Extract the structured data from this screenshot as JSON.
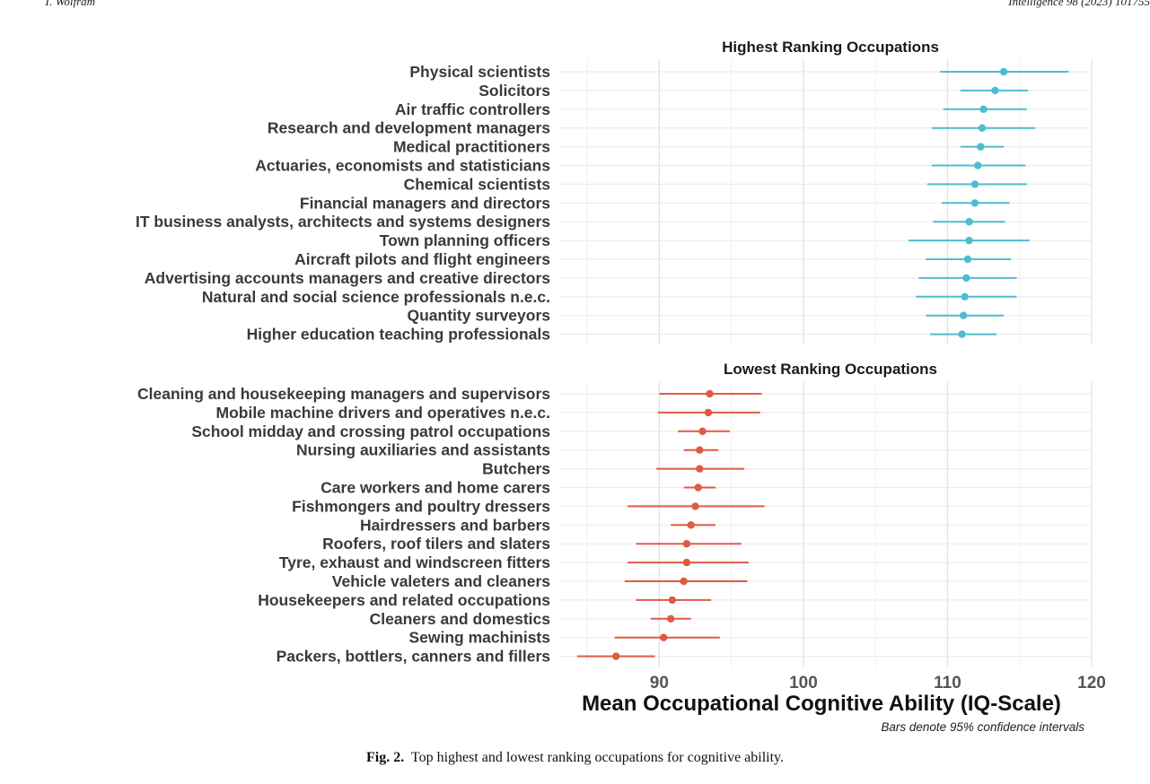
{
  "running_header": {
    "left": "T. Wolfram",
    "right": "Intelligence 98 (2023) 101755"
  },
  "chart_data": [
    {
      "type": "forest",
      "title": "Highest Ranking Occupations",
      "color": "#4EBCD0",
      "categories": [
        "Physical scientists",
        "Solicitors",
        "Air traffic controllers",
        "Research and development managers",
        "Medical practitioners",
        "Actuaries, economists and statisticians",
        "Chemical scientists",
        "Financial managers and directors",
        "IT business analysts, architects and systems designers",
        "Town planning officers",
        "Aircraft pilots and flight engineers",
        "Advertising accounts managers and creative directors",
        "Natural and social science professionals n.e.c.",
        "Quantity surveyors",
        "Higher education teaching professionals"
      ],
      "mean": [
        113.9,
        113.3,
        112.5,
        112.4,
        112.3,
        112.1,
        111.9,
        111.9,
        111.5,
        111.5,
        111.4,
        111.3,
        111.2,
        111.1,
        111.0
      ],
      "ci_low": [
        109.5,
        110.9,
        109.7,
        108.9,
        110.9,
        108.9,
        108.6,
        109.6,
        109.0,
        107.3,
        108.5,
        108.0,
        107.8,
        108.5,
        108.8
      ],
      "ci_high": [
        118.4,
        115.6,
        115.5,
        116.1,
        113.9,
        115.4,
        115.5,
        114.3,
        114.0,
        115.7,
        114.4,
        114.8,
        114.8,
        113.9,
        113.4
      ],
      "xlim": [
        83,
        120
      ]
    },
    {
      "type": "forest",
      "title": "Lowest Ranking Occupations",
      "color": "#E05A44",
      "categories": [
        "Cleaning and housekeeping managers and supervisors",
        "Mobile machine drivers and operatives n.e.c.",
        "School midday and crossing patrol occupations",
        "Nursing auxiliaries and assistants",
        "Butchers",
        "Care workers and home carers",
        "Fishmongers and poultry dressers",
        "Hairdressers and barbers",
        "Roofers, roof tilers and slaters",
        "Tyre, exhaust and windscreen fitters",
        "Vehicle valeters and cleaners",
        "Housekeepers and related occupations",
        "Cleaners and domestics",
        "Sewing machinists",
        "Packers, bottlers, canners and fillers"
      ],
      "mean": [
        93.5,
        93.4,
        93.0,
        92.8,
        92.8,
        92.7,
        92.5,
        92.2,
        91.9,
        91.9,
        91.7,
        90.9,
        90.8,
        90.3,
        87.0
      ],
      "ci_low": [
        90.0,
        89.9,
        91.3,
        91.7,
        89.8,
        91.7,
        87.8,
        90.8,
        88.4,
        87.8,
        87.6,
        88.4,
        89.4,
        86.9,
        84.3
      ],
      "ci_high": [
        97.1,
        97.0,
        94.9,
        94.1,
        95.9,
        93.9,
        97.3,
        93.9,
        95.7,
        96.2,
        96.1,
        93.6,
        92.2,
        94.2,
        89.7
      ],
      "xlim": [
        83,
        120
      ]
    }
  ],
  "axis": {
    "ticks": [
      90,
      100,
      110,
      120
    ],
    "xlabel": "Mean Occupational Cognitive Ability (IQ-Scale)",
    "note": "Bars denote 95% confidence intervals"
  },
  "caption": {
    "label": "Fig. 2.",
    "text": "Top highest and lowest ranking occupations for cognitive ability."
  }
}
